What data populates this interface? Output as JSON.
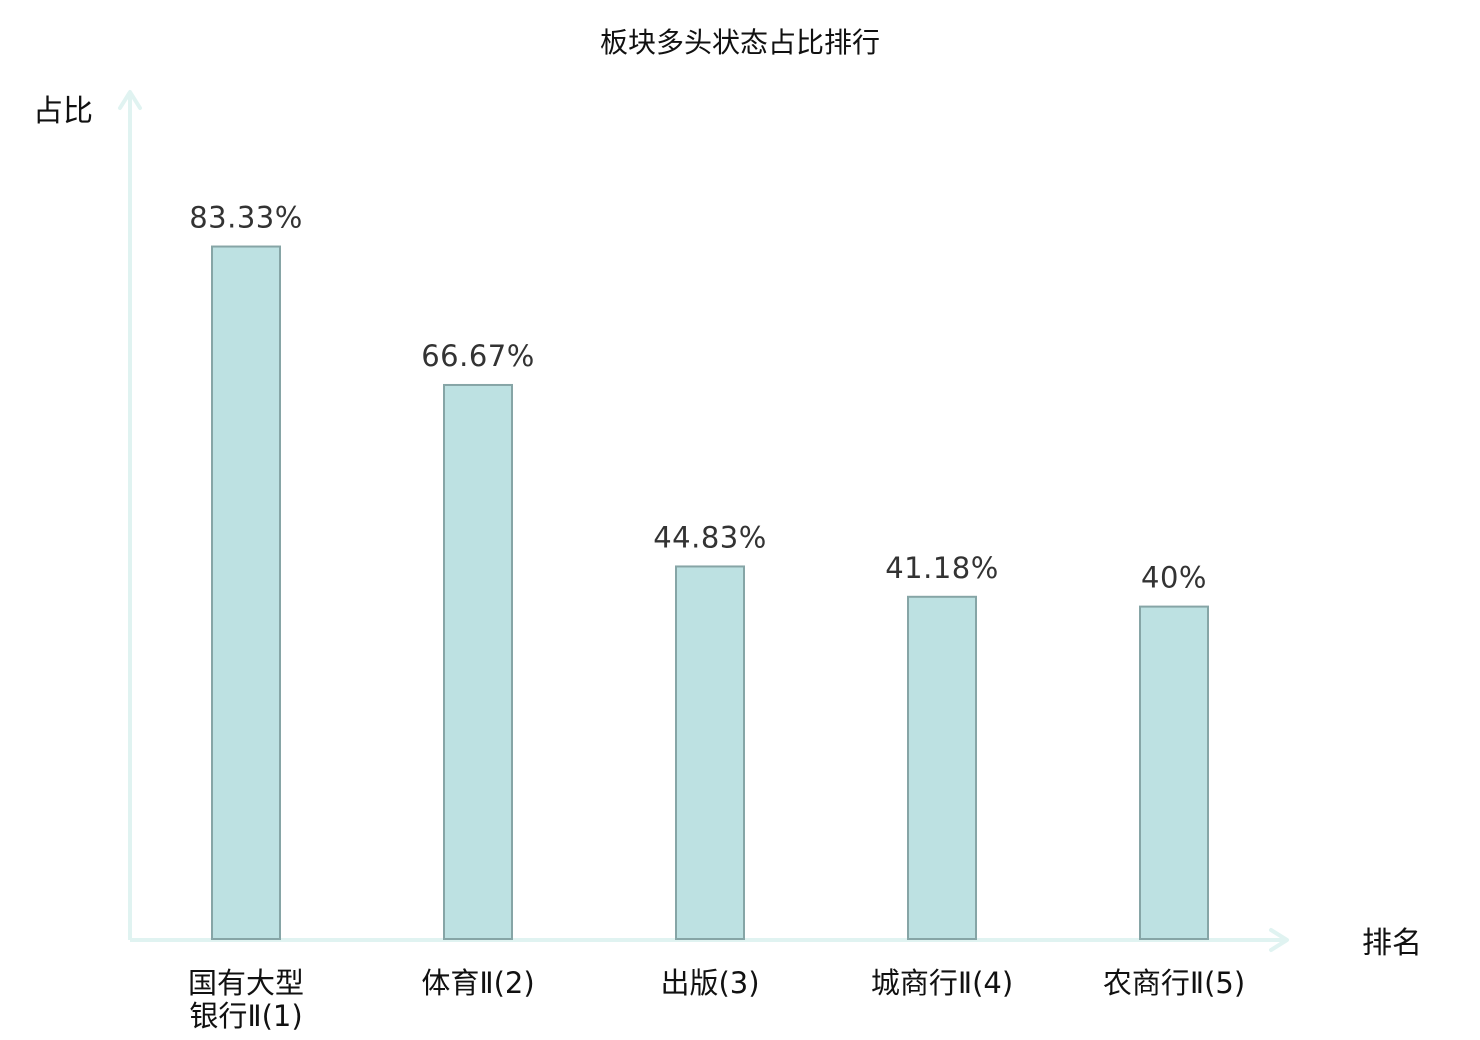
{
  "chart_data": {
    "type": "bar",
    "title": "板块多头状态占比排行",
    "ylabel": "占比",
    "xlabel": "排名",
    "categories": [
      {
        "lines": [
          "国有大型",
          "银行Ⅱ(1)"
        ],
        "highlight": true
      },
      {
        "lines": [
          "体育Ⅱ(2)"
        ],
        "highlight": false
      },
      {
        "lines": [
          "出版(3)"
        ],
        "highlight": false
      },
      {
        "lines": [
          "城商行Ⅱ(4)"
        ],
        "highlight": false
      },
      {
        "lines": [
          "农商行Ⅱ(5)"
        ],
        "highlight": false
      }
    ],
    "values": [
      83.33,
      66.67,
      44.83,
      41.18,
      40
    ],
    "value_labels": [
      "83.33%",
      "66.67%",
      "44.83%",
      "41.18%",
      "40%"
    ],
    "ylim": [
      0,
      100
    ],
    "grid": false,
    "colors": {
      "bar_fill": "#bde1e2",
      "bar_stroke": "#86a5a6",
      "axis": "#e0f3f1",
      "highlight_label": "#e00000",
      "label": "#111111",
      "value_label": "#333333"
    }
  }
}
